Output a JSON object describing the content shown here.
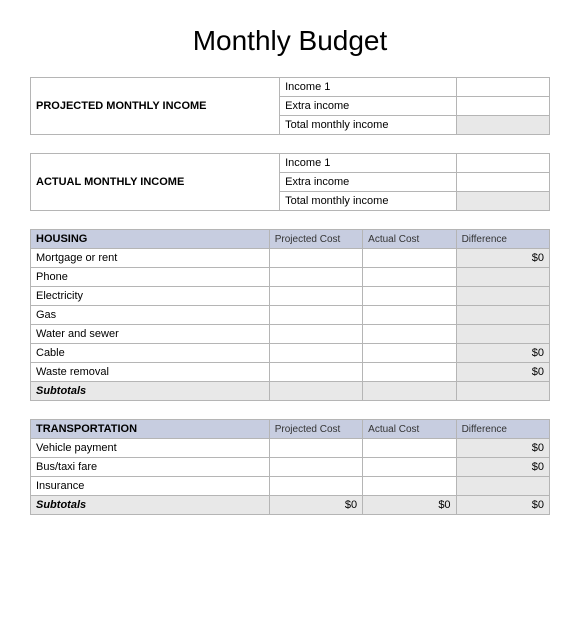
{
  "title": "Monthly Budget",
  "projected_income": {
    "label": "PROJECTED MONTHLY INCOME",
    "rows": [
      {
        "label": "Income 1",
        "value": "",
        "shaded": false
      },
      {
        "label": "Extra income",
        "value": "",
        "shaded": false
      },
      {
        "label": "Total monthly income",
        "value": "",
        "shaded": true
      }
    ]
  },
  "actual_income": {
    "label": "ACTUAL MONTHLY INCOME",
    "rows": [
      {
        "label": "Income 1",
        "value": "",
        "shaded": false
      },
      {
        "label": "Extra income",
        "value": "",
        "shaded": false
      },
      {
        "label": "Total monthly income",
        "value": "",
        "shaded": true
      }
    ]
  },
  "col_headers": {
    "projected": "Projected Cost",
    "actual": "Actual Cost",
    "difference": "Difference"
  },
  "housing": {
    "title": "HOUSING",
    "rows": [
      {
        "item": "Mortgage or rent",
        "projected": "",
        "actual": "",
        "difference": "$0"
      },
      {
        "item": "Phone",
        "projected": "",
        "actual": "",
        "difference": ""
      },
      {
        "item": "Electricity",
        "projected": "",
        "actual": "",
        "difference": ""
      },
      {
        "item": "Gas",
        "projected": "",
        "actual": "",
        "difference": ""
      },
      {
        "item": "Water and sewer",
        "projected": "",
        "actual": "",
        "difference": ""
      },
      {
        "item": "Cable",
        "projected": "",
        "actual": "",
        "difference": "$0"
      },
      {
        "item": "Waste removal",
        "projected": "",
        "actual": "",
        "difference": "$0"
      }
    ],
    "subtotal": {
      "label": "Subtotals",
      "projected": "",
      "actual": "",
      "difference": ""
    }
  },
  "transportation": {
    "title": "TRANSPORTATION",
    "rows": [
      {
        "item": "Vehicle payment",
        "projected": "",
        "actual": "",
        "difference": "$0"
      },
      {
        "item": "Bus/taxi fare",
        "projected": "",
        "actual": "",
        "difference": "$0"
      },
      {
        "item": "Insurance",
        "projected": "",
        "actual": "",
        "difference": ""
      }
    ],
    "subtotal": {
      "label": "Subtotals",
      "projected": "$0",
      "actual": "$0",
      "difference": "$0"
    }
  },
  "colors": {
    "header_bg": "#c7cde0",
    "shaded_bg": "#e8e8e8",
    "border": "#b5b5b5"
  }
}
